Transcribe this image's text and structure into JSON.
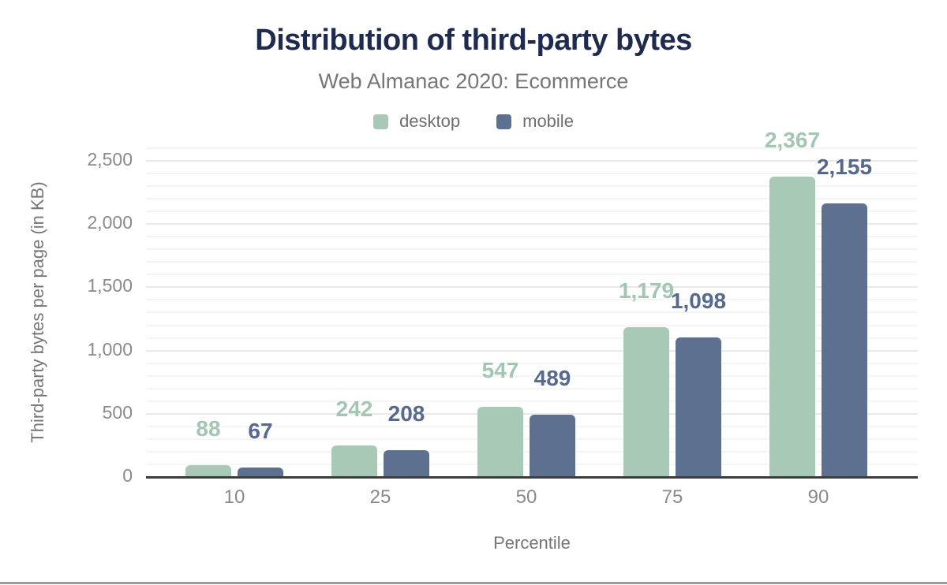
{
  "chart_data": {
    "type": "bar",
    "title": "Distribution of third-party bytes",
    "subtitle": "Web Almanac 2020: Ecommerce",
    "xlabel": "Percentile",
    "ylabel": "Third-party bytes per page (in KB)",
    "categories": [
      "10",
      "25",
      "50",
      "75",
      "90"
    ],
    "series": [
      {
        "name": "desktop",
        "values": [
          88,
          242,
          547,
          1179,
          2367
        ]
      },
      {
        "name": "mobile",
        "values": [
          67,
          208,
          489,
          1098,
          2155
        ]
      }
    ],
    "ylim": [
      0,
      2500
    ],
    "y_tick_step": 500,
    "y_minor_step": 100,
    "y_tick_labels": [
      "0",
      "500",
      "1,000",
      "1,500",
      "2,000",
      "2,500"
    ],
    "data_labels": [
      "88",
      "67",
      "242",
      "208",
      "547",
      "489",
      "1,179",
      "1,098",
      "2,367",
      "2,155"
    ],
    "grid": "horizontal",
    "legend_position": "top-center"
  },
  "colors": {
    "desktop_bar": "#a7c9b6",
    "desktop_label": "#a3c6b2",
    "mobile_bar": "#5d7090",
    "mobile_label": "#57698d",
    "title": "#1e2b4f",
    "subtitle": "#767676",
    "tick_label": "#8a8a8a",
    "axis_title": "#767676",
    "axis_line": "#3d3d3d",
    "grid_major": "#e9e9e9",
    "grid_minor": "#f5f5f5",
    "bottom_rule": "#9d9d9d",
    "background": "#ffffff"
  }
}
